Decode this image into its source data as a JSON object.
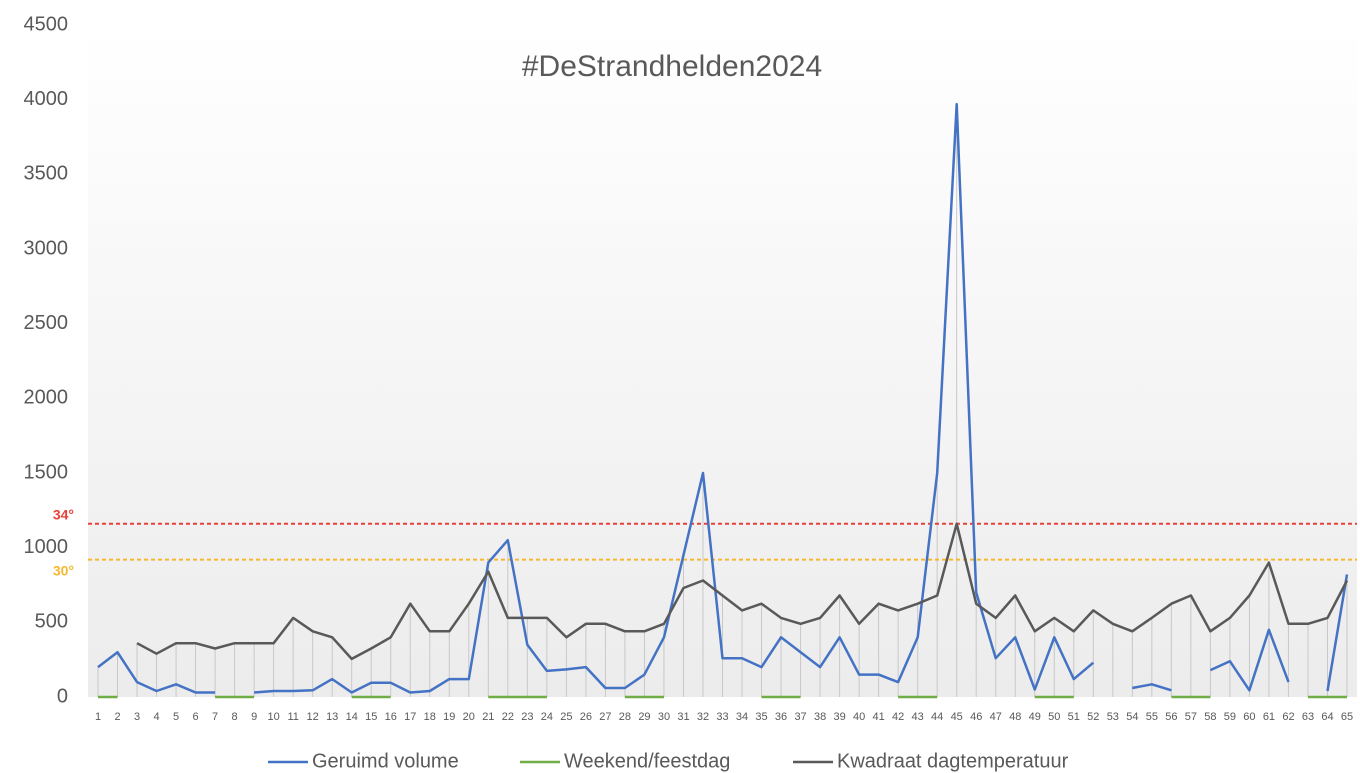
{
  "chart_data": {
    "type": "line",
    "title": "#DeStrandhelden2024",
    "categories": [
      "1",
      "2",
      "3",
      "4",
      "5",
      "6",
      "7",
      "8",
      "9",
      "10",
      "11",
      "12",
      "13",
      "14",
      "15",
      "16",
      "17",
      "18",
      "19",
      "20",
      "21",
      "22",
      "23",
      "24",
      "25",
      "26",
      "27",
      "28",
      "29",
      "30",
      "31",
      "32",
      "33",
      "34",
      "35",
      "36",
      "37",
      "38",
      "39",
      "40",
      "41",
      "42",
      "43",
      "44",
      "45",
      "46",
      "47",
      "48",
      "49",
      "50",
      "51",
      "52",
      "53",
      "54",
      "55",
      "56",
      "57",
      "58",
      "59",
      "60",
      "61",
      "62",
      "63",
      "64",
      "65"
    ],
    "series": [
      {
        "name": "Geruimd volume",
        "color": "#4472c4",
        "values": [
          200,
          300,
          100,
          40,
          85,
          30,
          30,
          null,
          30,
          40,
          40,
          45,
          120,
          30,
          95,
          95,
          30,
          40,
          120,
          120,
          900,
          1050,
          350,
          175,
          185,
          200,
          60,
          60,
          150,
          400,
          950,
          1500,
          260,
          260,
          200,
          400,
          300,
          200,
          400,
          150,
          150,
          100,
          400,
          1500,
          3970,
          700,
          260,
          400,
          50,
          400,
          120,
          230,
          null,
          60,
          85,
          45,
          null,
          180,
          240,
          45,
          450,
          100,
          null,
          40,
          820
        ]
      },
      {
        "name": "Weekend/feestdag",
        "color": "#70ad47",
        "values": [
          0,
          0,
          null,
          null,
          null,
          null,
          0,
          0,
          0,
          null,
          null,
          null,
          null,
          0,
          0,
          0,
          null,
          null,
          null,
          null,
          0,
          0,
          0,
          0,
          null,
          null,
          null,
          0,
          0,
          0,
          null,
          null,
          null,
          null,
          0,
          0,
          0,
          null,
          null,
          null,
          null,
          0,
          0,
          0,
          null,
          null,
          null,
          null,
          0,
          0,
          0,
          null,
          null,
          null,
          null,
          0,
          0,
          0,
          null,
          null,
          null,
          null,
          0,
          0,
          0
        ]
      },
      {
        "name": "Kwadraat dagtemperatuur",
        "color": "#595959",
        "values": [
          null,
          null,
          360,
          290,
          360,
          360,
          325,
          360,
          360,
          360,
          530,
          440,
          400,
          255,
          325,
          400,
          625,
          440,
          440,
          625,
          840,
          530,
          530,
          530,
          400,
          490,
          490,
          440,
          440,
          490,
          730,
          780,
          680,
          580,
          625,
          530,
          490,
          530,
          680,
          490,
          625,
          580,
          625,
          680,
          1160,
          625,
          530,
          680,
          440,
          530,
          440,
          580,
          490,
          440,
          530,
          625,
          680,
          440,
          530,
          680,
          900,
          490,
          490,
          530,
          780
        ]
      }
    ],
    "reference_lines": [
      {
        "label": "34°",
        "value": 1160,
        "color": "#e8403a"
      },
      {
        "label": "30°",
        "value": 920,
        "color": "#f5b82e"
      }
    ],
    "ylim": [
      0,
      4500
    ],
    "yticks": [
      0,
      500,
      1000,
      1500,
      2000,
      2500,
      3000,
      3500,
      4000,
      4500
    ],
    "legend": "bottom"
  }
}
